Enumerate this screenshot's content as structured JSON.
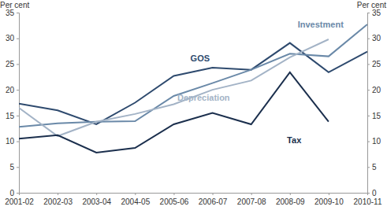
{
  "chart_data": {
    "type": "line",
    "y_label": "Per cent",
    "categories": [
      "2001-02",
      "2002-03",
      "2003-04",
      "2004-05",
      "2005-06",
      "2006-07",
      "2007-08",
      "2008-09",
      "2009-10",
      "2010-11"
    ],
    "series": [
      {
        "name": "GOS",
        "color": "#2e4a6e",
        "values": [
          17.3,
          16.0,
          13.3,
          17.5,
          22.7,
          24.3,
          23.9,
          29.1,
          23.4,
          27.4
        ]
      },
      {
        "name": "Investment",
        "color": "#6a89a8",
        "values": [
          12.8,
          13.5,
          13.8,
          13.9,
          18.8,
          21.3,
          23.9,
          27.0,
          26.5,
          32.7
        ]
      },
      {
        "name": "Depreciation",
        "color": "#a3b3c6",
        "values": [
          16.5,
          11.0,
          13.8,
          15.3,
          17.2,
          20.0,
          21.8,
          26.3,
          29.8,
          null
        ]
      },
      {
        "name": "Tax",
        "color": "#1b2f4d",
        "values": [
          10.5,
          11.2,
          7.8,
          8.7,
          13.3,
          15.5,
          13.3,
          23.4,
          13.8,
          null
        ]
      }
    ],
    "ylim": [
      0,
      35
    ],
    "yticks": [
      0,
      5,
      10,
      15,
      20,
      25,
      30,
      35
    ],
    "grid": false
  }
}
